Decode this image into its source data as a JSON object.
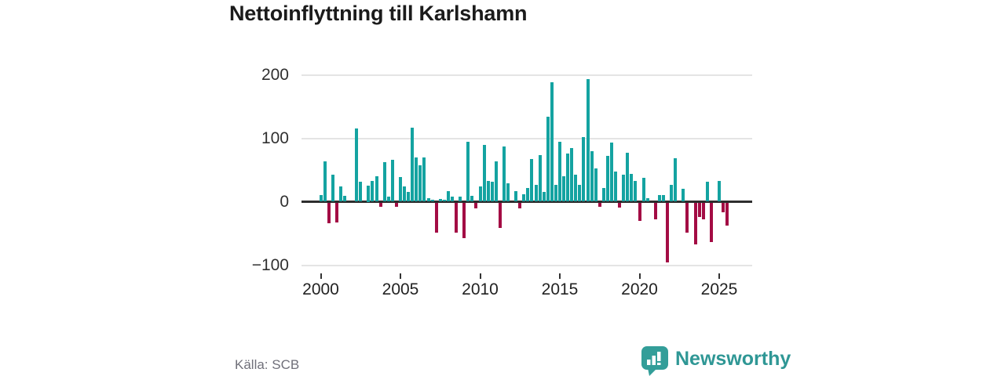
{
  "title": "Nettoinflyttning till Karlshamn",
  "source": "Källa: SCB",
  "brand": {
    "name": "Newsworthy",
    "color": "#2f9795",
    "icon": "bar-chart-speech-bubble"
  },
  "chart_data": {
    "type": "bar",
    "title": "Nettoinflyttning till Karlshamn",
    "period": "quarterly",
    "x_start": {
      "year": 2000,
      "quarter": 1
    },
    "x_end": {
      "year": 2025,
      "quarter": 3
    },
    "values": [
      11,
      63,
      -32,
      42,
      -31,
      24,
      9,
      0,
      0,
      115,
      31,
      0,
      25,
      33,
      40,
      -6,
      62,
      8,
      66,
      -6,
      39,
      24,
      16,
      117,
      70,
      57,
      70,
      5,
      3,
      -47,
      4,
      3,
      17,
      8,
      -47,
      8,
      -55,
      95,
      9,
      -9,
      24,
      90,
      33,
      31,
      63,
      -40,
      87,
      29,
      0,
      17,
      -9,
      12,
      21,
      67,
      27,
      73,
      15,
      134,
      188,
      26,
      94,
      40,
      76,
      85,
      43,
      27,
      102,
      193,
      80,
      53,
      -6,
      22,
      72,
      93,
      48,
      -8,
      43,
      77,
      44,
      33,
      -28,
      38,
      5,
      0,
      -26,
      11,
      11,
      -94,
      27,
      69,
      0,
      20,
      -47,
      0,
      -65,
      -22,
      -26,
      32,
      -62,
      0,
      33,
      -15,
      -36
    ],
    "xticks": [
      2000,
      2005,
      2010,
      2015,
      2020,
      2025
    ],
    "yticks": [
      {
        "value": 200,
        "label": "200"
      },
      {
        "value": 100,
        "label": "100"
      },
      {
        "value": 0,
        "label": "0"
      },
      {
        "value": -100,
        "label": "−100"
      }
    ],
    "ylim": [
      -115,
      205
    ],
    "grid": true,
    "legend": "none",
    "positive_color": "#14a3a1",
    "negative_color": "#a30c44",
    "grid_color": "#e4e4e4",
    "zero_line_color": "#2d2d2d"
  }
}
